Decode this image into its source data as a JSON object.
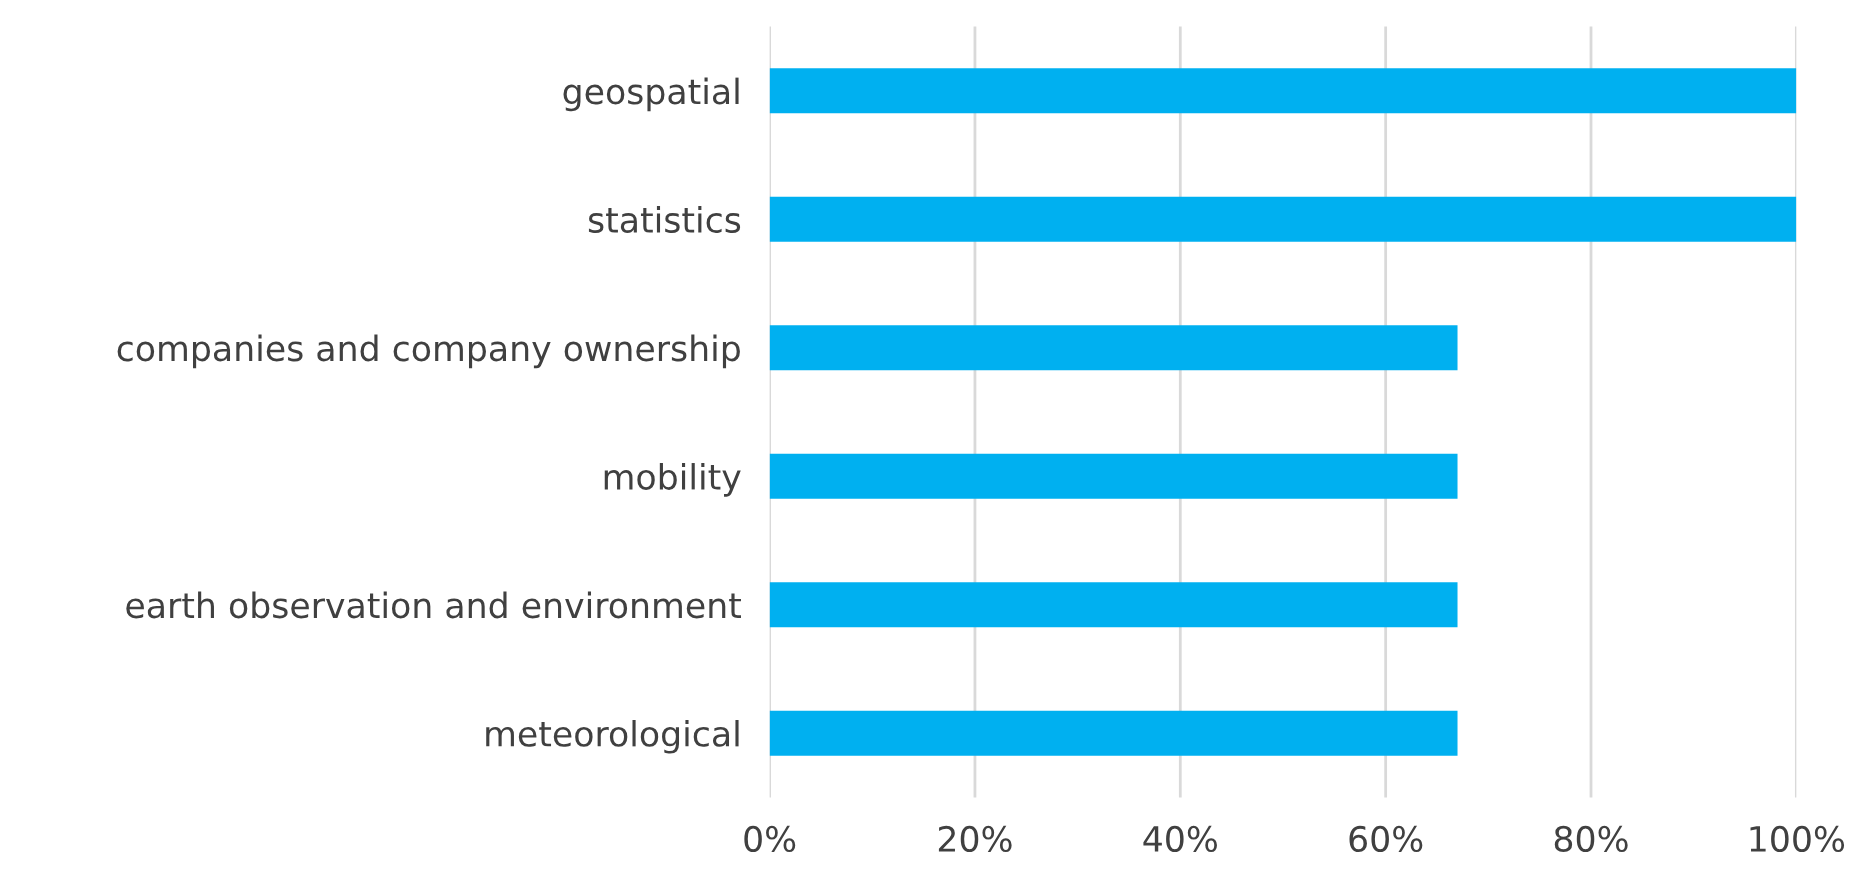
{
  "chart_data": {
    "type": "bar",
    "orientation": "horizontal",
    "categories": [
      "geospatial",
      "statistics",
      "companies and company ownership",
      "mobility",
      "earth observation and environment",
      "meteorological"
    ],
    "values": [
      100,
      100,
      67,
      67,
      67,
      67
    ],
    "color": "#00b0f0",
    "xlim": [
      0,
      100
    ],
    "xticks": [
      {
        "value": 0,
        "label": "0%"
      },
      {
        "value": 20,
        "label": "20%"
      },
      {
        "value": 40,
        "label": "40%"
      },
      {
        "value": 60,
        "label": "60%"
      },
      {
        "value": 80,
        "label": "80%"
      },
      {
        "value": 100,
        "label": "100%"
      }
    ],
    "grid": "x",
    "legend": false
  }
}
